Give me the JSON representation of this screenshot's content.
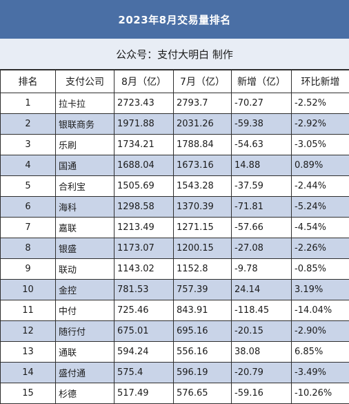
{
  "title": "2023年8月交易量排名",
  "subtitle": "公众号：支付大明白 制作",
  "columns": [
    "排名",
    "支付公司",
    "8月（亿）",
    "7月（亿）",
    "新增（亿）",
    "环比新增"
  ],
  "rows": [
    {
      "rank": "1",
      "company": "拉卡拉",
      "aug": "2723.43",
      "jul": "2793.7",
      "delta": "-70.27",
      "pct": "-2.52%"
    },
    {
      "rank": "2",
      "company": "银联商务",
      "aug": "1971.88",
      "jul": "2031.26",
      "delta": "-59.38",
      "pct": "-2.92%"
    },
    {
      "rank": "3",
      "company": "乐刷",
      "aug": "1734.21",
      "jul": "1788.84",
      "delta": "-54.63",
      "pct": "-3.05%"
    },
    {
      "rank": "4",
      "company": "国通",
      "aug": "1688.04",
      "jul": "1673.16",
      "delta": "14.88",
      "pct": "0.89%"
    },
    {
      "rank": "5",
      "company": "合利宝",
      "aug": "1505.69",
      "jul": "1543.28",
      "delta": "-37.59",
      "pct": "-2.44%"
    },
    {
      "rank": "6",
      "company": "海科",
      "aug": "1298.58",
      "jul": "1370.39",
      "delta": "-71.81",
      "pct": "-5.24%"
    },
    {
      "rank": "7",
      "company": "嘉联",
      "aug": "1213.49",
      "jul": "1271.15",
      "delta": "-57.66",
      "pct": "-4.54%"
    },
    {
      "rank": "8",
      "company": "银盛",
      "aug": "1173.07",
      "jul": "1200.15",
      "delta": "-27.08",
      "pct": "-2.26%"
    },
    {
      "rank": "9",
      "company": "联动",
      "aug": "1143.02",
      "jul": "1152.8",
      "delta": "-9.78",
      "pct": "-0.85%"
    },
    {
      "rank": "10",
      "company": "金控",
      "aug": "781.53",
      "jul": "757.39",
      "delta": "24.14",
      "pct": "3.19%"
    },
    {
      "rank": "11",
      "company": "中付",
      "aug": "725.46",
      "jul": "843.91",
      "delta": "-118.45",
      "pct": "-14.04%"
    },
    {
      "rank": "12",
      "company": "随行付",
      "aug": "675.01",
      "jul": "695.16",
      "delta": "-20.15",
      "pct": "-2.90%"
    },
    {
      "rank": "13",
      "company": "通联",
      "aug": "594.24",
      "jul": "556.16",
      "delta": "38.08",
      "pct": "6.85%"
    },
    {
      "rank": "14",
      "company": "盛付通",
      "aug": "575.4",
      "jul": "596.19",
      "delta": "-20.79",
      "pct": "-3.49%"
    },
    {
      "rank": "15",
      "company": "杉德",
      "aug": "517.49",
      "jul": "576.65",
      "delta": "-59.16",
      "pct": "-10.26%"
    }
  ],
  "colors": {
    "header_bg": "#4a6fa5",
    "stripe": "#c9d4e8",
    "subtitle_bg": "#e8edf5"
  }
}
